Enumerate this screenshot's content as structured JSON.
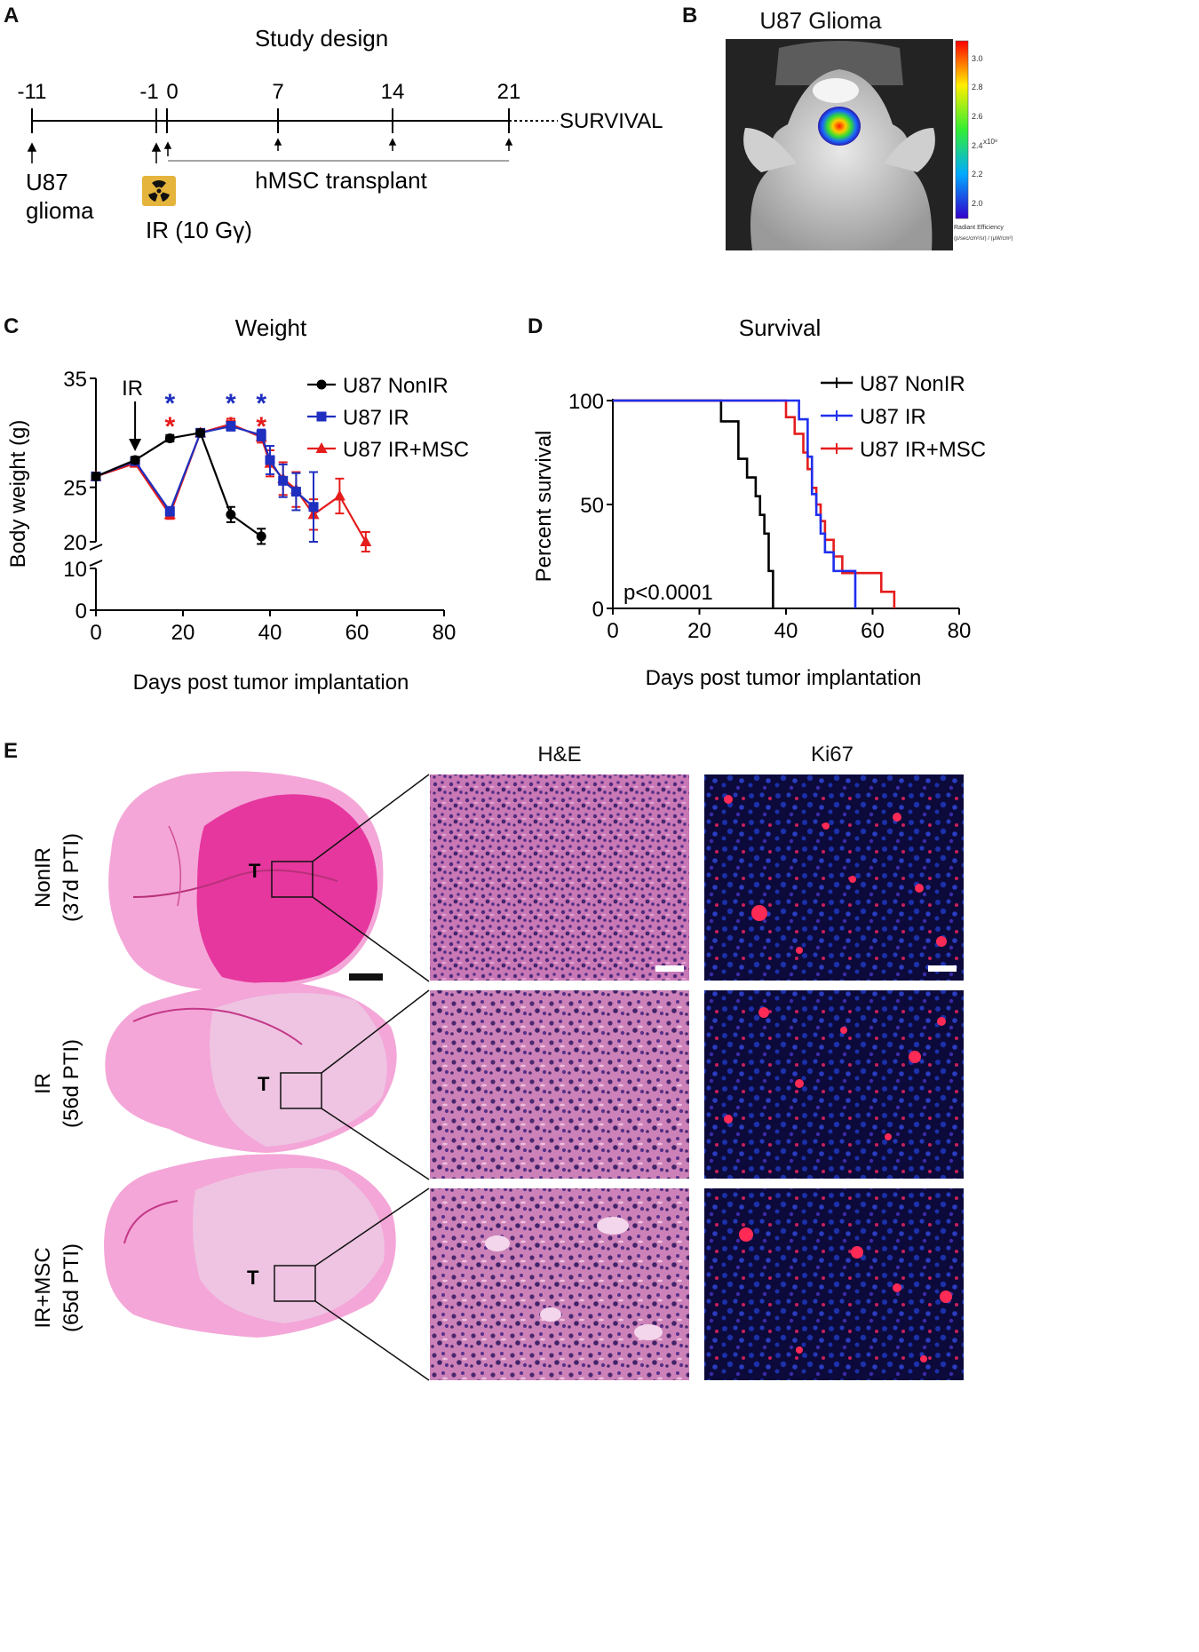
{
  "panels": {
    "a": "A",
    "b": "B",
    "c": "C",
    "d": "D",
    "e": "E"
  },
  "study_design": {
    "title": "Study design",
    "days": [
      "-11",
      "-1",
      "0",
      "7",
      "14",
      "21"
    ],
    "survival_label": "SURVIVAL",
    "glioma_label_1": "U87",
    "glioma_label_2": "glioma",
    "ir_label": "IR (10 Gγ)",
    "transplant_label": "hMSC transplant"
  },
  "imaging": {
    "title": "U87 Glioma",
    "colorbar_ticks": [
      "3.0",
      "2.8",
      "2.6",
      "2.4",
      "2.2",
      "2.0"
    ],
    "colorbar_exponent": "x10⁸",
    "colorbar_label_1": "Radiant Efficiency",
    "colorbar_label_2": "(p/sec/cm²/sr) / (µW/cm²)"
  },
  "chart_data": [
    {
      "type": "line",
      "title": "Weight",
      "xlabel": "Days post tumor implantation",
      "ylabel": "Body weight (g)",
      "xlim": [
        0,
        80
      ],
      "x_ticks": [
        0,
        20,
        40,
        60,
        80
      ],
      "y_ticks": [
        0,
        10,
        20,
        25,
        35
      ],
      "y_axis_break": [
        10,
        20
      ],
      "annotation": "IR",
      "annotation_x": 9,
      "significance": [
        {
          "x": 17,
          "marks": [
            "*",
            "*"
          ]
        },
        {
          "x": 31,
          "marks": [
            "*",
            "*"
          ]
        },
        {
          "x": 38,
          "marks": [
            "*",
            "*"
          ]
        }
      ],
      "legend_position": "top-right",
      "series": [
        {
          "name": "U87 NonIR",
          "color": "#000000",
          "marker": "circle",
          "x": [
            0,
            9,
            17,
            24,
            31,
            38
          ],
          "y": [
            26,
            27.5,
            29.5,
            30,
            22.5,
            20.5
          ],
          "err": [
            0.3,
            0.3,
            0.3,
            0.3,
            0.7,
            0.7
          ]
        },
        {
          "name": "U87 IR",
          "color": "#1f2fbf",
          "marker": "square",
          "x": [
            0,
            9,
            17,
            24,
            31,
            38,
            40,
            43,
            46,
            50
          ],
          "y": [
            26,
            27.4,
            22.8,
            30,
            30.6,
            29.8,
            27.5,
            25.6,
            24.6,
            23.2
          ],
          "err": [
            0.3,
            0.3,
            0.4,
            0.3,
            0.4,
            0.5,
            1.3,
            1.5,
            1.7,
            3.2
          ]
        },
        {
          "name": "U87 IR+MSC",
          "color": "#e51c1c",
          "marker": "triangle",
          "x": [
            0,
            9,
            17,
            24,
            31,
            38,
            40,
            43,
            46,
            50,
            56,
            62
          ],
          "y": [
            26,
            27.2,
            22.5,
            30,
            30.8,
            29.6,
            27.2,
            25.8,
            24.8,
            22.5,
            24.2,
            20
          ],
          "err": [
            0.3,
            0.3,
            0.4,
            0.3,
            0.5,
            0.5,
            1.2,
            1.5,
            1.6,
            1.4,
            1.6,
            0.9
          ]
        }
      ]
    },
    {
      "type": "line",
      "title": "Survival",
      "xlabel": "Days post tumor implantation",
      "ylabel": "Percent survival",
      "xlim": [
        0,
        80
      ],
      "ylim": [
        0,
        100
      ],
      "x_ticks": [
        0,
        20,
        40,
        60,
        80
      ],
      "y_ticks": [
        0,
        50,
        100
      ],
      "annotation": "p<0.0001",
      "legend_position": "top-right",
      "series": [
        {
          "name": "U87 NonIR",
          "color": "#000000",
          "steps": [
            [
              0,
              100
            ],
            [
              25,
              100
            ],
            [
              25,
              90
            ],
            [
              29,
              90
            ],
            [
              29,
              72
            ],
            [
              31,
              72
            ],
            [
              31,
              63
            ],
            [
              33,
              63
            ],
            [
              33,
              54
            ],
            [
              34,
              54
            ],
            [
              34,
              45
            ],
            [
              35,
              45
            ],
            [
              35,
              36
            ],
            [
              36,
              36
            ],
            [
              36,
              18
            ],
            [
              37,
              18
            ],
            [
              37,
              0
            ]
          ]
        },
        {
          "name": "U87 IR",
          "color": "#1f2fee",
          "steps": [
            [
              0,
              100
            ],
            [
              43,
              100
            ],
            [
              43,
              91
            ],
            [
              45,
              91
            ],
            [
              45,
              73
            ],
            [
              46,
              73
            ],
            [
              46,
              55
            ],
            [
              47,
              55
            ],
            [
              47,
              45
            ],
            [
              48,
              45
            ],
            [
              48,
              36
            ],
            [
              49,
              36
            ],
            [
              49,
              27
            ],
            [
              51,
              27
            ],
            [
              51,
              18
            ],
            [
              56,
              18
            ],
            [
              56,
              0
            ]
          ]
        },
        {
          "name": "U87 IR+MSC",
          "color": "#e51c1c",
          "steps": [
            [
              0,
              100
            ],
            [
              40,
              100
            ],
            [
              40,
              92
            ],
            [
              42,
              92
            ],
            [
              42,
              84
            ],
            [
              44,
              84
            ],
            [
              44,
              75
            ],
            [
              45,
              75
            ],
            [
              45,
              67
            ],
            [
              46,
              67
            ],
            [
              46,
              58
            ],
            [
              47,
              58
            ],
            [
              47,
              50
            ],
            [
              48,
              50
            ],
            [
              48,
              42
            ],
            [
              49,
              42
            ],
            [
              49,
              33
            ],
            [
              51,
              33
            ],
            [
              51,
              25
            ],
            [
              53,
              25
            ],
            [
              53,
              17
            ],
            [
              62,
              17
            ],
            [
              62,
              8
            ],
            [
              65,
              8
            ],
            [
              65,
              0
            ]
          ]
        }
      ]
    }
  ],
  "histology": {
    "col_he": "H&E",
    "col_ki67": "Ki67",
    "tumor_label": "T",
    "rows": [
      {
        "line1": "NonIR",
        "line2": "(37d PTI)"
      },
      {
        "line1": "IR",
        "line2": "(56d PTI)"
      },
      {
        "line1": "IR+MSC",
        "line2": "(65d PTI)"
      }
    ]
  }
}
